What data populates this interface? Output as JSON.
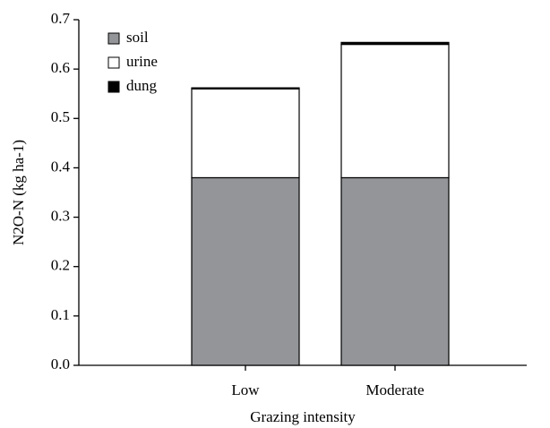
{
  "chart_data": {
    "type": "stacked_bar",
    "x_label": "Grazing intensity",
    "y_label": "N2O-N (kg ha-1)",
    "categories": [
      "Low",
      "Moderate"
    ],
    "series": [
      {
        "name": "soil",
        "color": "#939598",
        "values": [
          0.38,
          0.38
        ]
      },
      {
        "name": "urine",
        "color": "#ffffff",
        "values": [
          0.18,
          0.27
        ]
      },
      {
        "name": "dung",
        "color": "#000000",
        "values": [
          0.002,
          0.004
        ]
      }
    ],
    "ylim": [
      0,
      0.7
    ],
    "yticks": [
      {
        "value": 0,
        "label": "0.0"
      },
      0.1,
      0.2,
      0.3,
      0.4,
      0.5,
      0.6,
      0.7
    ],
    "legend": "top-left"
  }
}
